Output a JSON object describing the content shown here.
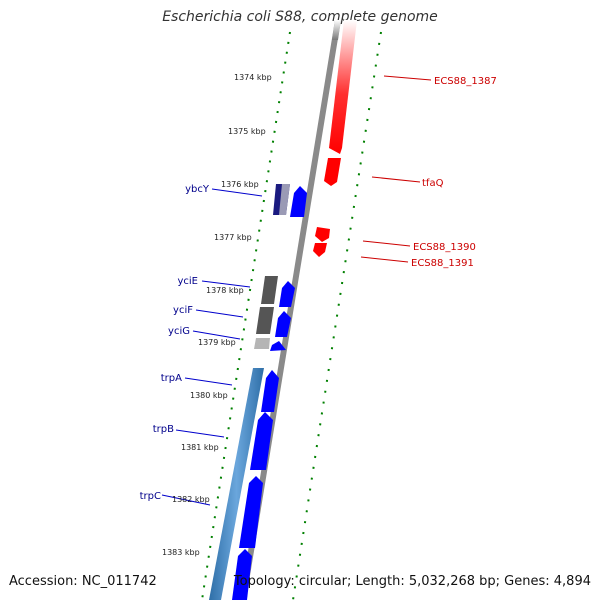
{
  "title": "Escherichia coli S88, complete genome",
  "footer": {
    "accession": "Accession: NC_011742",
    "summary": "Topology: circular; Length: 5,032,268 bp; Genes: 4,894"
  },
  "scale": {
    "tick_labels": [
      "1374 kbp",
      "1375 kbp",
      "1376 kbp",
      "1377 kbp",
      "1378 kbp",
      "1379 kbp",
      "1380 kbp",
      "1381 kbp",
      "1382 kbp",
      "1383 kbp"
    ]
  },
  "genes_left": [
    {
      "name": "ybcY"
    },
    {
      "name": "yciE"
    },
    {
      "name": "yciF"
    },
    {
      "name": "yciG"
    },
    {
      "name": "trpA"
    },
    {
      "name": "trpB"
    },
    {
      "name": "trpC"
    }
  ],
  "genes_right": [
    {
      "name": "ECS88_1387"
    },
    {
      "name": "tfaQ"
    },
    {
      "name": "ECS88_1390"
    },
    {
      "name": "ECS88_1391"
    }
  ],
  "colors": {
    "forward_gene": "#0000ff",
    "reverse_gene": "#ff0000",
    "backbone": "#808080",
    "gc_ticks": "#008000",
    "operon_bar": "#4a87c0",
    "left_label": "#00008b",
    "right_label": "#cc0000"
  }
}
